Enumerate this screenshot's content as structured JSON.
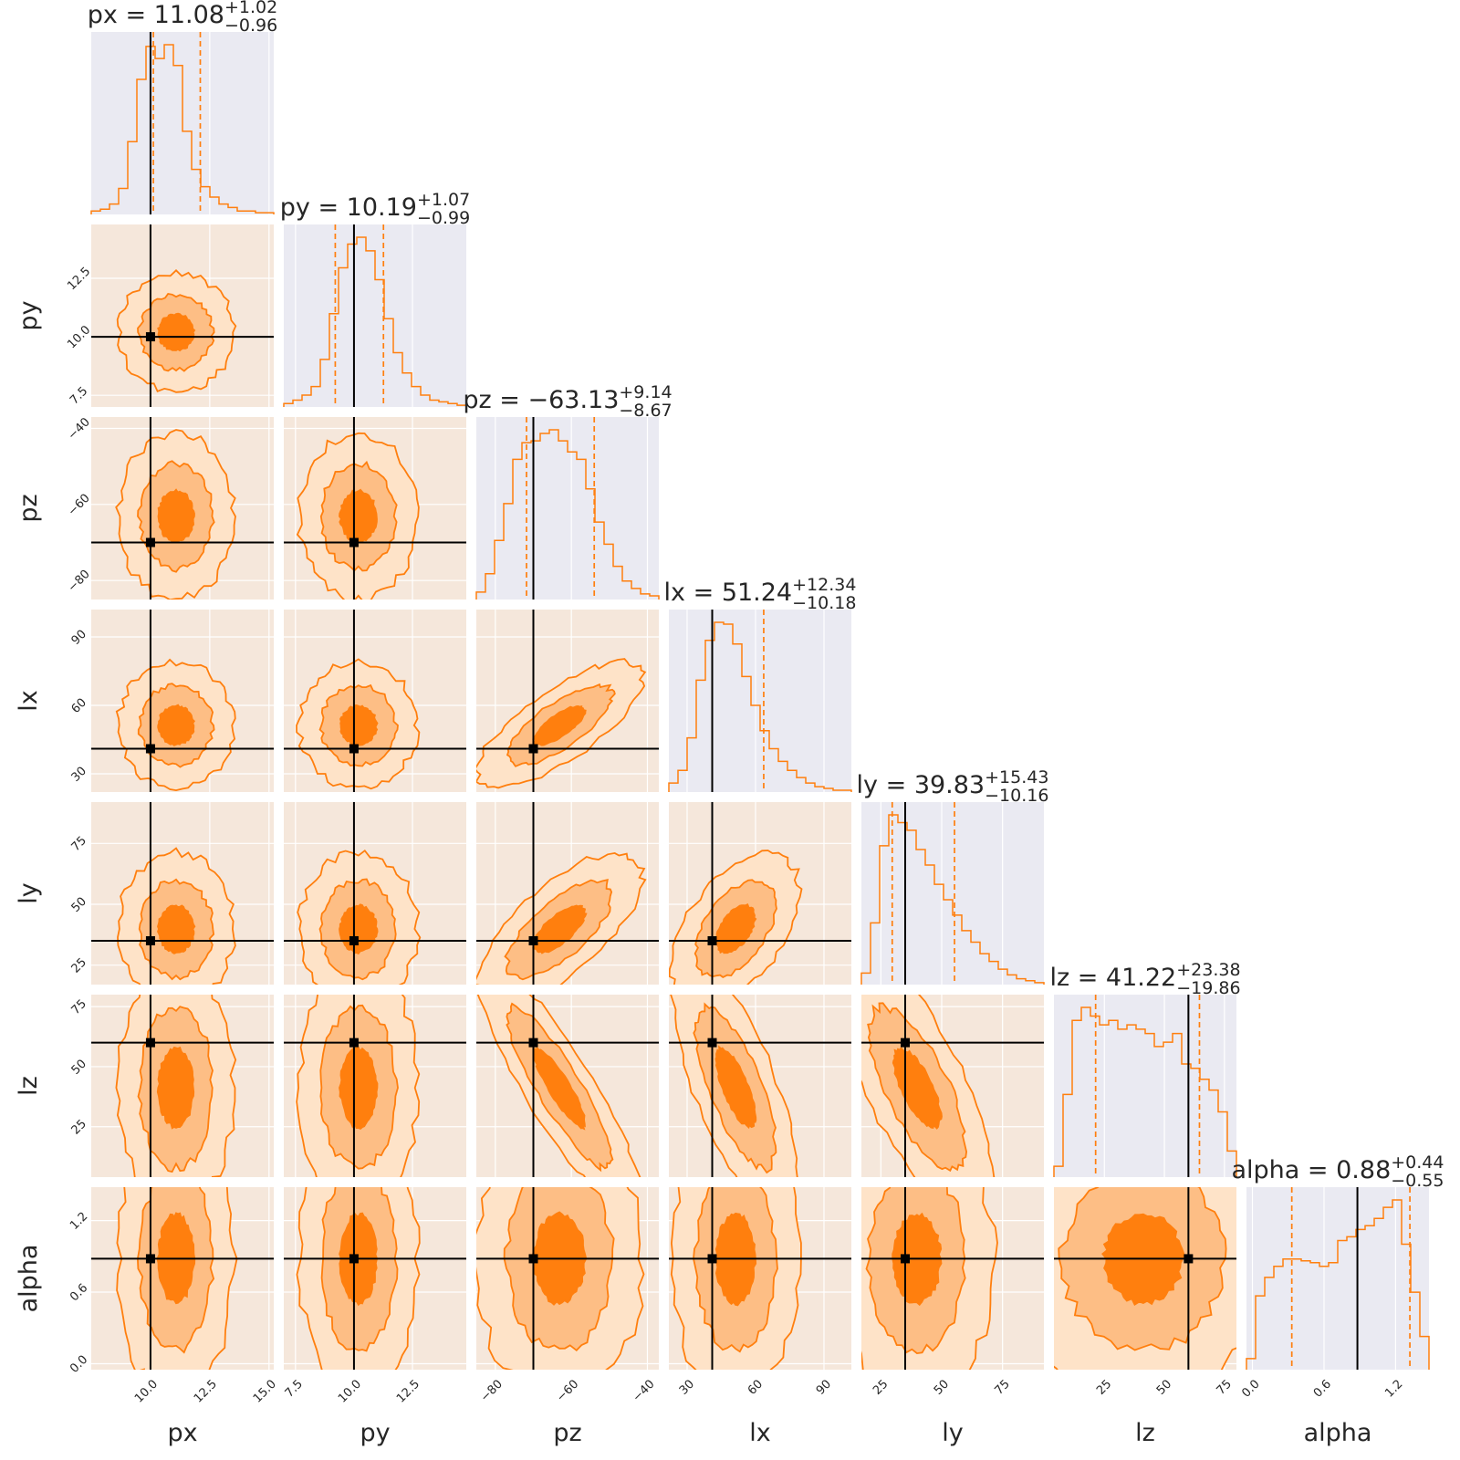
{
  "chart_data": {
    "type": "corner",
    "colors": {
      "accent": "#ff7f0e",
      "fill_inner": "#ff7f0e",
      "fill_mid": "#fdbe85",
      "fill_outer": "#fee3c8",
      "truth": "#000000",
      "panel_bg": "#eaeaf2"
    },
    "parameters": [
      {
        "name": "px",
        "label": "px",
        "range": [
          7.5,
          15.2
        ],
        "ticks": [
          10.0,
          12.5,
          15.0
        ],
        "tick_labels": [
          "10.0",
          "12.5",
          "15.0"
        ],
        "truth": 10.0,
        "median": 11.08,
        "plus": 1.02,
        "minus": 0.96,
        "median_text": "11.08",
        "plus_text": "+1.02",
        "minus_text": "−0.96",
        "title_prefix": "px = ",
        "hist": [
          0.02,
          0.03,
          0.06,
          0.15,
          0.42,
          0.78,
          0.97,
          0.9,
          0.98,
          0.86,
          0.48,
          0.26,
          0.16,
          0.1,
          0.06,
          0.04,
          0.02,
          0.02,
          0.01,
          0.01
        ]
      },
      {
        "name": "py",
        "label": "py",
        "range": [
          7.0,
          14.8
        ],
        "ticks": [
          7.5,
          10.0,
          12.5
        ],
        "tick_labels": [
          "7.5",
          "10.0",
          "12.5"
        ],
        "truth": 10.0,
        "median": 10.19,
        "plus": 1.07,
        "minus": 0.99,
        "median_text": "10.19",
        "plus_text": "+1.07",
        "minus_text": "−0.99",
        "title_prefix": "py = ",
        "hist": [
          0.02,
          0.04,
          0.07,
          0.12,
          0.28,
          0.55,
          0.82,
          0.96,
          1.0,
          0.92,
          0.75,
          0.52,
          0.32,
          0.2,
          0.12,
          0.07,
          0.04,
          0.03,
          0.02,
          0.01
        ]
      },
      {
        "name": "pz",
        "label": "pz",
        "range": [
          -85.0,
          -37.0
        ],
        "ticks": [
          -80,
          -60,
          -40
        ],
        "tick_labels": [
          "−80",
          "−60",
          "−40"
        ],
        "truth": -70.0,
        "median": -63.13,
        "plus": 9.14,
        "minus": 8.67,
        "median_text": "−63.13",
        "plus_text": "+9.14",
        "minus_text": "−8.67",
        "title_prefix": "pz = ",
        "hist": [
          0.04,
          0.14,
          0.32,
          0.52,
          0.76,
          0.85,
          0.86,
          0.9,
          0.92,
          0.86,
          0.8,
          0.76,
          0.6,
          0.42,
          0.3,
          0.18,
          0.1,
          0.06,
          0.03,
          0.02
        ]
      },
      {
        "name": "lx",
        "label": "lx",
        "range": [
          22.0,
          102.0
        ],
        "ticks": [
          30,
          60,
          90
        ],
        "tick_labels": [
          "30",
          "60",
          "90"
        ],
        "truth": 41.0,
        "median": 51.24,
        "plus": 12.34,
        "minus": 10.18,
        "median_text": "51.24",
        "plus_text": "+12.34",
        "minus_text": "−10.18",
        "title_prefix": "lx = ",
        "hist": [
          0.05,
          0.12,
          0.3,
          0.62,
          0.84,
          0.94,
          0.93,
          0.82,
          0.64,
          0.48,
          0.34,
          0.24,
          0.17,
          0.12,
          0.08,
          0.05,
          0.03,
          0.02,
          0.01,
          0.01
        ]
      },
      {
        "name": "ly",
        "label": "ly",
        "range": [
          17.0,
          92.0
        ],
        "ticks": [
          25,
          50,
          75
        ],
        "tick_labels": [
          "25",
          "50",
          "75"
        ],
        "truth": 35.0,
        "median": 39.83,
        "plus": 15.43,
        "minus": 10.16,
        "median_text": "39.83",
        "plus_text": "+15.43",
        "minus_text": "−10.16",
        "title_prefix": "ly = ",
        "hist": [
          0.06,
          0.32,
          0.72,
          0.88,
          0.84,
          0.8,
          0.7,
          0.62,
          0.52,
          0.44,
          0.36,
          0.28,
          0.22,
          0.16,
          0.12,
          0.08,
          0.05,
          0.03,
          0.02,
          0.01
        ]
      },
      {
        "name": "lz",
        "label": "lz",
        "range": [
          4.0,
          80.0
        ],
        "ticks": [
          25,
          50,
          75
        ],
        "tick_labels": [
          "25",
          "50",
          "75"
        ],
        "truth": 60.0,
        "median": 41.22,
        "plus": 23.38,
        "minus": 19.86,
        "median_text": "41.22",
        "plus_text": "+23.38",
        "minus_text": "−19.86",
        "title_prefix": "lz = ",
        "hist": [
          0.05,
          0.38,
          0.72,
          0.78,
          0.74,
          0.7,
          0.72,
          0.68,
          0.7,
          0.68,
          0.66,
          0.6,
          0.62,
          0.66,
          0.52,
          0.5,
          0.45,
          0.4,
          0.3,
          0.12
        ]
      },
      {
        "name": "alpha",
        "label": "alpha",
        "range": [
          -0.05,
          1.48
        ],
        "ticks": [
          0.0,
          0.6,
          1.2
        ],
        "tick_labels": [
          "0.0",
          "0.6",
          "1.2"
        ],
        "truth": 0.88,
        "median": 0.88,
        "plus": 0.44,
        "minus": 0.55,
        "median_text": "0.88",
        "plus_text": "+0.44",
        "minus_text": "−0.55",
        "title_prefix": "alpha = ",
        "hist": [
          0.06,
          0.4,
          0.5,
          0.56,
          0.6,
          0.6,
          0.59,
          0.58,
          0.56,
          0.58,
          0.7,
          0.72,
          0.76,
          0.78,
          0.82,
          0.88,
          0.92,
          0.68,
          0.42,
          0.18
        ]
      }
    ],
    "correlations": {
      "pz_lx": 0.75,
      "pz_ly": 0.7,
      "lx_ly": 0.5,
      "pz_lz": -0.88,
      "lx_lz": -0.72,
      "ly_lz": -0.7
    },
    "contour_levels": [
      "0.5-sigma",
      "1-sigma",
      "2-sigma"
    ],
    "grid": true
  }
}
